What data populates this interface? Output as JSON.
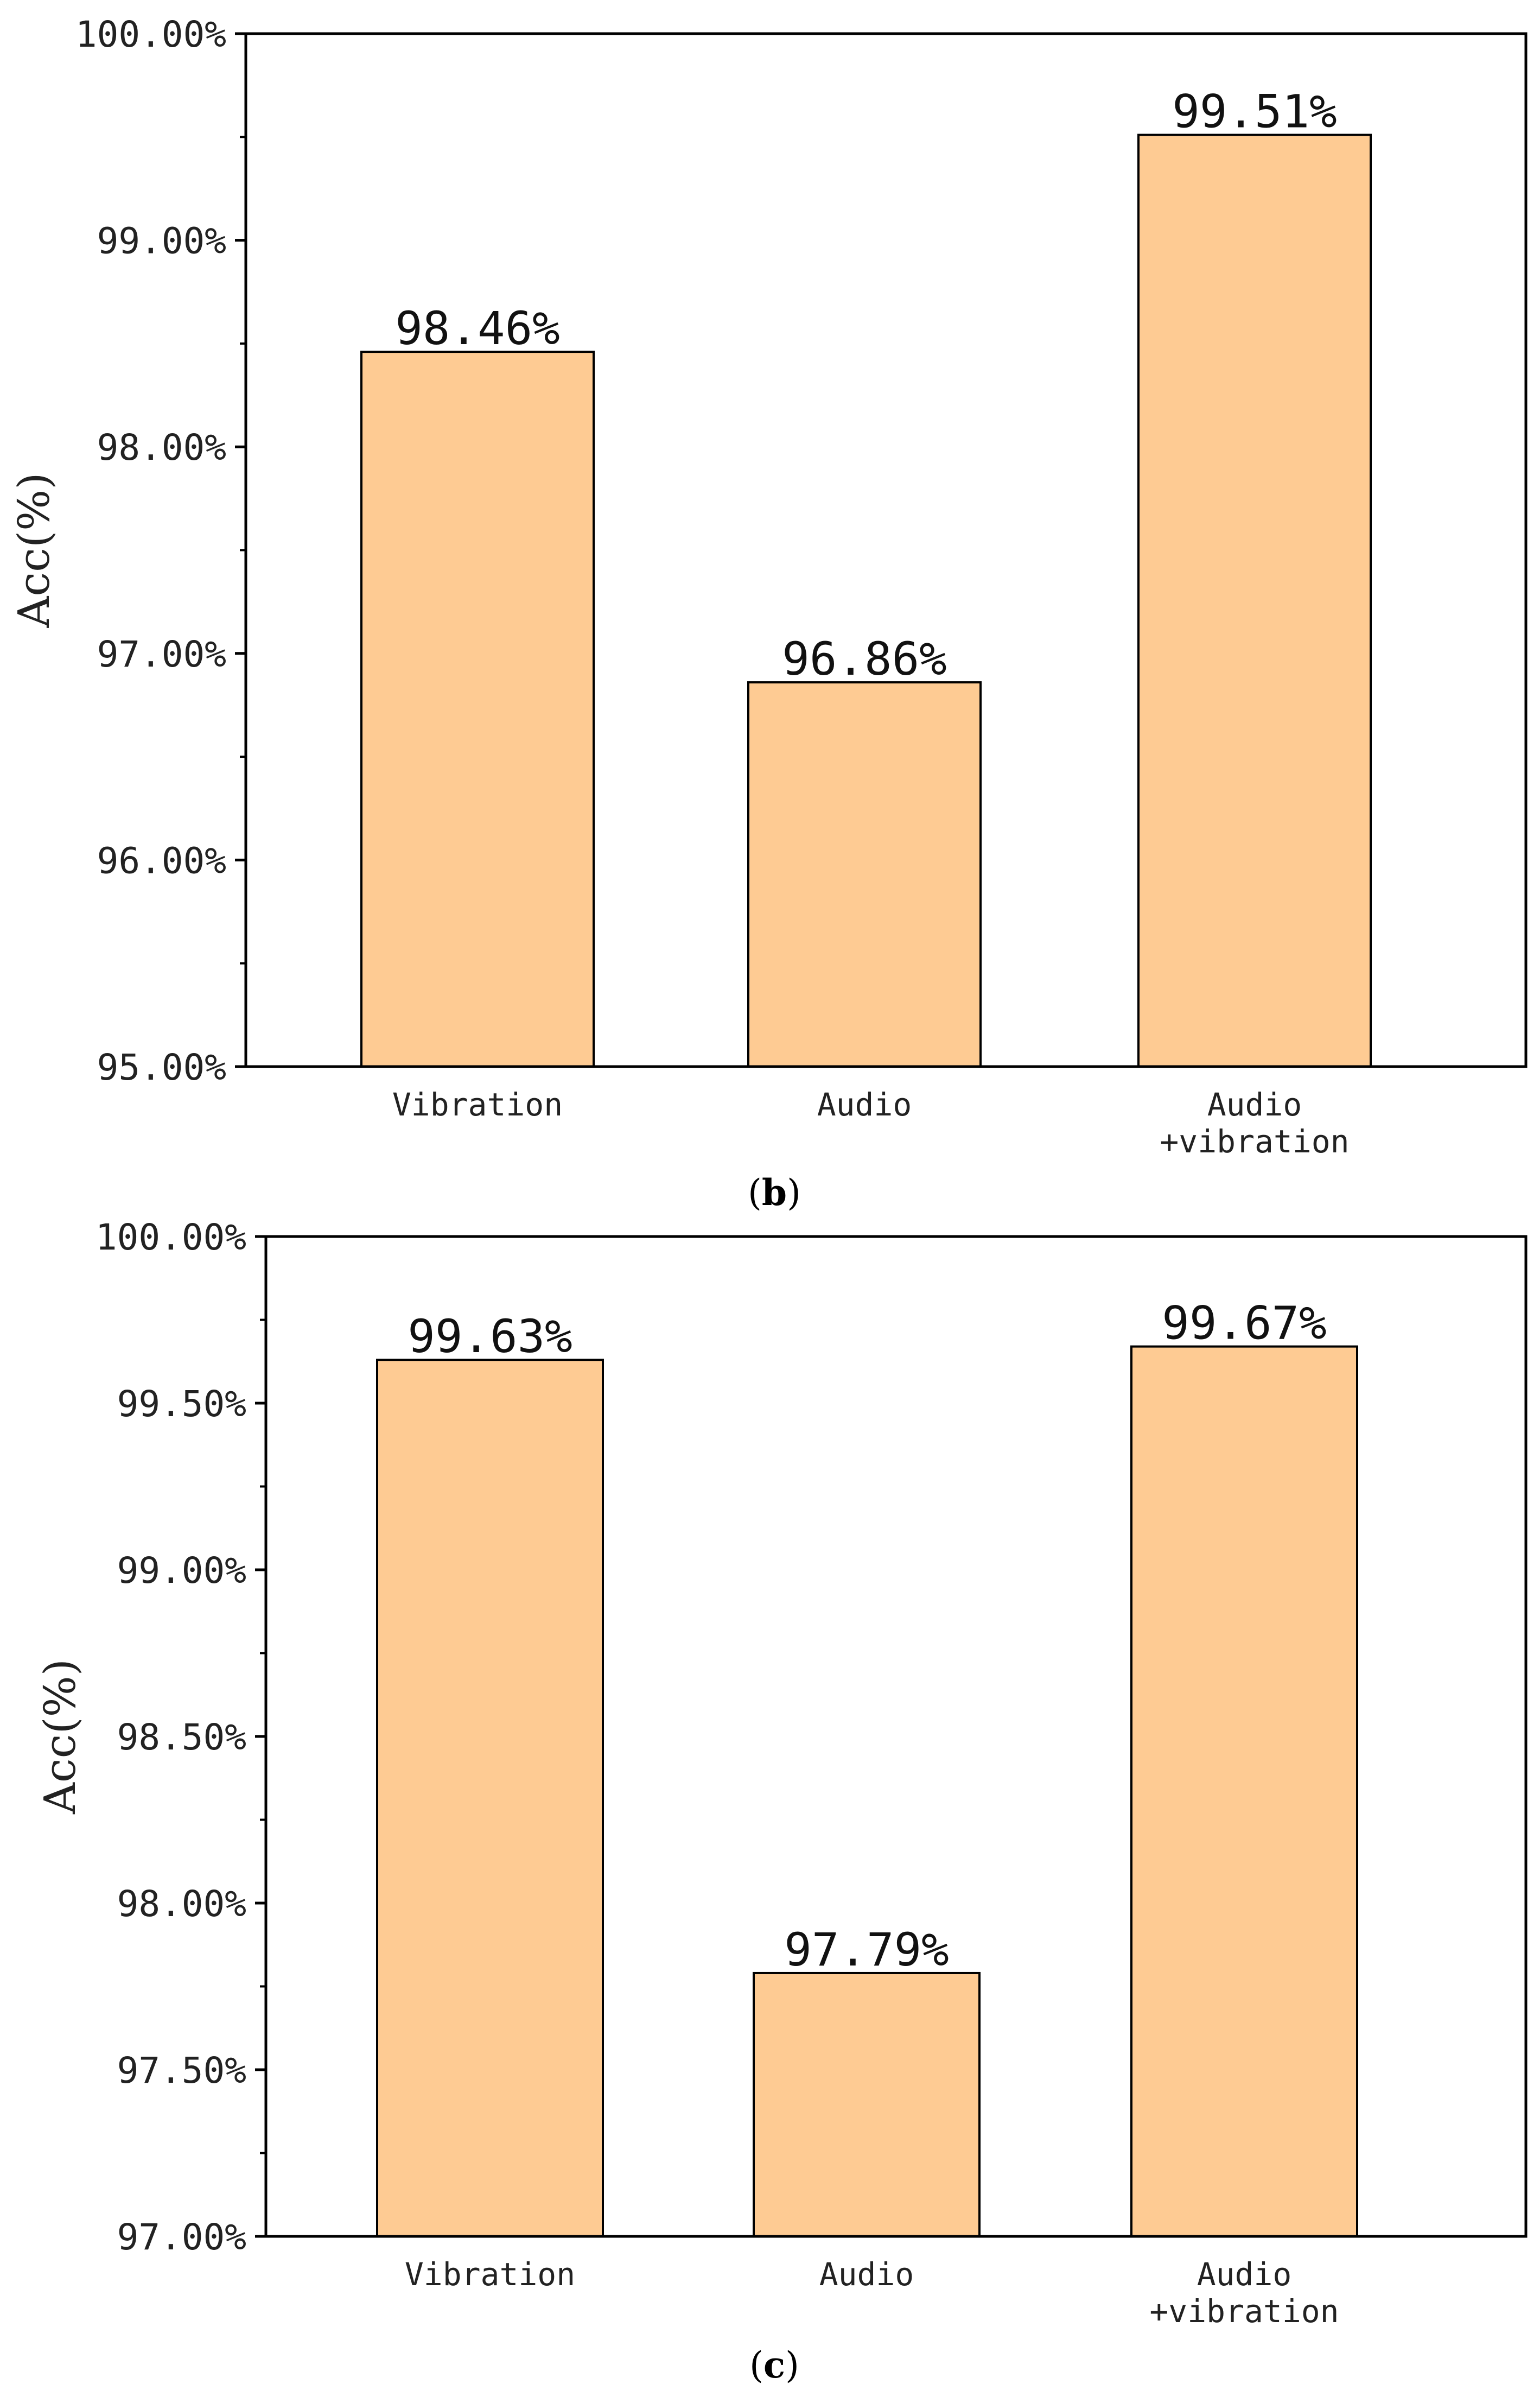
{
  "chart_data": [
    {
      "type": "bar",
      "panel_label": "(b)",
      "categories": [
        "Vibration",
        "Audio",
        "Audio\n+vibration"
      ],
      "values": [
        98.46,
        96.86,
        99.51
      ],
      "value_labels": [
        "98.46%",
        "96.86%",
        "99.51%"
      ],
      "ylabel": "Acc(%)",
      "xlabel": "",
      "ylim": [
        95,
        100
      ],
      "yticks": [
        95,
        96,
        97,
        98,
        99,
        100
      ],
      "ytick_labels": [
        "95.00%",
        "96.00%",
        "97.00%",
        "98.00%",
        "99.00%",
        "100.00%"
      ],
      "grid": false
    },
    {
      "type": "bar",
      "panel_label": "(c)",
      "categories": [
        "Vibration",
        "Audio",
        "Audio\n+vibration"
      ],
      "values": [
        99.63,
        97.79,
        99.67
      ],
      "value_labels": [
        "99.63%",
        "97.79%",
        "99.67%"
      ],
      "ylabel": "Acc(%)",
      "xlabel": "",
      "ylim": [
        97,
        100
      ],
      "yticks": [
        97,
        97.5,
        98,
        98.5,
        99,
        99.5,
        100
      ],
      "ytick_labels": [
        "97.00%",
        "97.50%",
        "98.00%",
        "98.50%",
        "99.00%",
        "99.50%",
        "100.00%"
      ],
      "grid": false
    }
  ],
  "colors": {
    "bar_fill": "#FECB93",
    "bar_stroke": "#000000",
    "axis": "#000000"
  }
}
